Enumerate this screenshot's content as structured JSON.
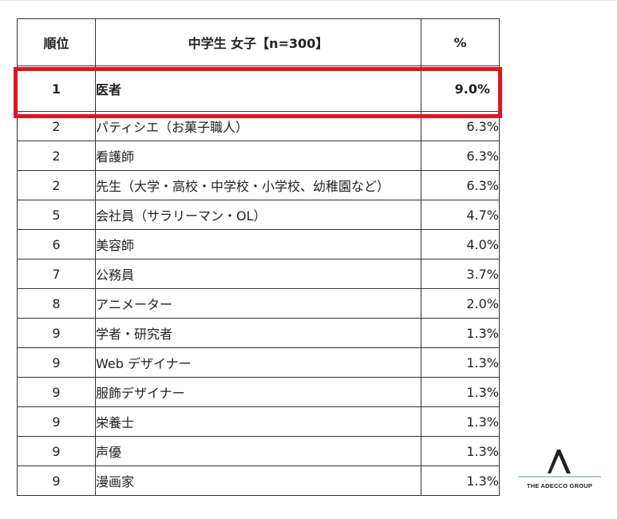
{
  "chart_data": {
    "type": "table",
    "header": {
      "rank": "順位",
      "title": "中学生 女子【n=300】",
      "percent": "%"
    },
    "rows": [
      {
        "rank": "1",
        "job": "医者",
        "percent": "9.0%",
        "highlighted": true
      },
      {
        "rank": "2",
        "job": "パティシエ（お菓子職人）",
        "percent": "6.3%"
      },
      {
        "rank": "2",
        "job": "看護師",
        "percent": "6.3%"
      },
      {
        "rank": "2",
        "job": "先生（大学・高校・中学校・小学校、幼稚園など）",
        "percent": "6.3%"
      },
      {
        "rank": "5",
        "job": "会社員（サラリーマン・OL）",
        "percent": "4.7%"
      },
      {
        "rank": "6",
        "job": "美容師",
        "percent": "4.0%"
      },
      {
        "rank": "7",
        "job": "公務員",
        "percent": "3.7%"
      },
      {
        "rank": "8",
        "job": "アニメーター",
        "percent": "2.0%"
      },
      {
        "rank": "9",
        "job": "学者・研究者",
        "percent": "1.3%"
      },
      {
        "rank": "9",
        "job": "Web デザイナー",
        "percent": "1.3%"
      },
      {
        "rank": "9",
        "job": "服飾デザイナー",
        "percent": "1.3%"
      },
      {
        "rank": "9",
        "job": "栄養士",
        "percent": "1.3%"
      },
      {
        "rank": "9",
        "job": "声優",
        "percent": "1.3%"
      },
      {
        "rank": "9",
        "job": "漫画家",
        "percent": "1.3%"
      }
    ],
    "highlight_color": "#e3141b"
  },
  "logo": {
    "text": "THE ADECCO GROUP",
    "icon": "adecco-a-logo-icon",
    "accent_color": "#a9cde0"
  }
}
